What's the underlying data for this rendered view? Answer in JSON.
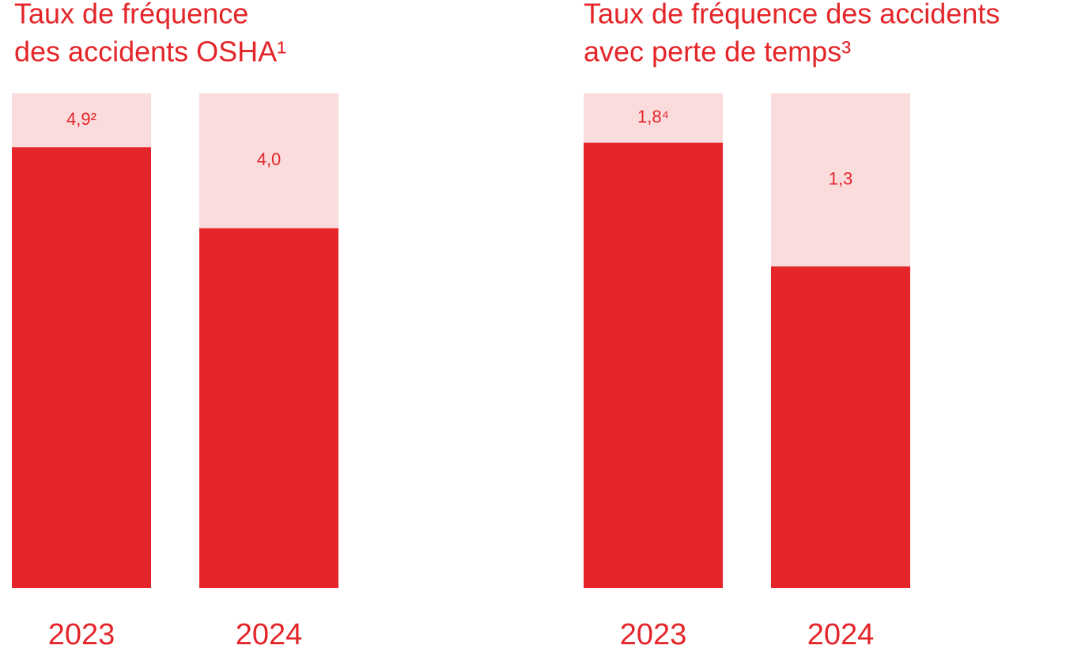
{
  "chart_data": [
    {
      "type": "bar",
      "title": [
        "Taux de fréquence",
        "des accidents OSHA¹"
      ],
      "categories": [
        "2023",
        "2024"
      ],
      "values": [
        4.9,
        4.0
      ],
      "value_labels": [
        "4,9²",
        "4,0"
      ],
      "color": "#e4262a",
      "background_color": "#fadcdd",
      "ylim": [
        0,
        5.5
      ]
    },
    {
      "type": "bar",
      "title": [
        "Taux de fréquence des accidents",
        "avec perte de temps³"
      ],
      "categories": [
        "2023",
        "2024"
      ],
      "values": [
        1.8,
        1.3
      ],
      "value_labels": [
        "1,8⁴",
        "1,3"
      ],
      "color": "#e4262a",
      "background_color": "#fadcdd",
      "ylim": [
        0,
        2
      ]
    }
  ]
}
